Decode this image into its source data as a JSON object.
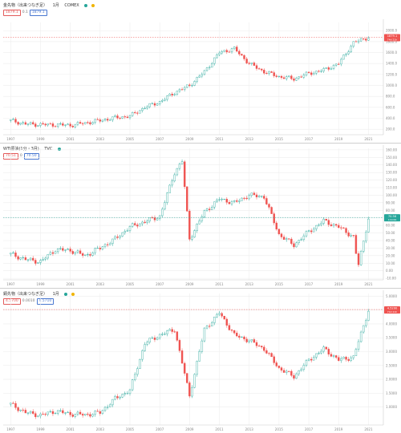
{
  "colors": {
    "up": "#26a69a",
    "down": "#ef5350",
    "grid": "#eeeeee",
    "axis": "#888888",
    "gold_accent": "#f0b400",
    "green_accent": "#26a69a"
  },
  "panels": [
    {
      "title": "金先物（出来つなぎ足）",
      "interval": "1月",
      "exchange": "COMEX",
      "price_boxes": [
        "1879.1",
        "0.1",
        "1879.1"
      ],
      "last_label": "1879.1",
      "last_sub": "74d 21h",
      "badge_color": "#ef5350"
    },
    {
      "title": "WTI原油(1分・3月)",
      "interval": "",
      "exchange": "TVC",
      "price_boxes": [
        "70.51",
        "0",
        "70.50"
      ],
      "last_label": "70.56",
      "last_sub": "119.99",
      "badge_color": "#26a69a"
    },
    {
      "title": "銅先物（出来つなぎ足）",
      "interval": "1月",
      "exchange": "",
      "price_boxes": [
        "4.5700",
        "0.0010",
        "4.5710"
      ],
      "last_label": "4.5200",
      "last_sub": "74d 21h",
      "badge_color": "#ef5350"
    }
  ],
  "chart_data": [
    {
      "type": "line",
      "title": "金先物（出来つなぎ足） 1月 COMEX",
      "x": [
        1997,
        1998,
        1999,
        2000,
        2001,
        2002,
        2003,
        2004,
        2005,
        2006,
        2007,
        2008,
        2009,
        2010,
        2011,
        2012,
        2013,
        2014,
        2015,
        2016,
        2017,
        2018,
        2019,
        2020,
        2021
      ],
      "values": [
        360,
        295,
        285,
        282,
        272,
        315,
        360,
        410,
        440,
        600,
        700,
        870,
        1000,
        1250,
        1600,
        1670,
        1400,
        1250,
        1160,
        1120,
        1220,
        1280,
        1400,
        1780,
        1880
      ],
      "x_ticks": [
        "1997",
        "1999",
        "2001",
        "2003",
        "2005",
        "2007",
        "2009",
        "2011",
        "2013",
        "2015",
        "2017",
        "2019",
        "2021"
      ],
      "y_ticks": [
        "200.0",
        "400.0",
        "600.0",
        "800.0",
        "1000.0",
        "1200.0",
        "1400.0",
        "1600.0",
        "1800.0",
        "2000.0"
      ],
      "ylim": [
        100,
        2150
      ],
      "last_value": 1879.1,
      "grid": true
    },
    {
      "type": "line",
      "title": "WTI原油(1分・3月) TVC",
      "x": [
        1997,
        1998,
        1999,
        2000,
        2001,
        2002,
        2003,
        2004,
        2005,
        2006,
        2007,
        2008,
        2008.5,
        2009,
        2010,
        2011,
        2012,
        2013,
        2014,
        2015,
        2016,
        2017,
        2018,
        2019,
        2020,
        2020.3,
        2021
      ],
      "values": [
        22,
        15,
        12,
        28,
        27,
        20,
        30,
        42,
        58,
        65,
        72,
        130,
        145,
        42,
        78,
        95,
        90,
        100,
        98,
        48,
        34,
        52,
        66,
        58,
        45,
        5,
        70
      ],
      "x_ticks": [
        "1997",
        "1999",
        "2001",
        "2003",
        "2005",
        "2007",
        "2009",
        "2011",
        "2013",
        "2015",
        "2017",
        "2019",
        "2021"
      ],
      "y_ticks": [
        "-10.00",
        "0.00",
        "10.00",
        "20.00",
        "30.00",
        "40.00",
        "50.00",
        "60.00",
        "70.00",
        "80.00",
        "90.00",
        "100.00",
        "110.00",
        "120.00",
        "130.00",
        "140.00",
        "150.00",
        "160.00"
      ],
      "ylim": [
        -12,
        162
      ],
      "last_value": 70.56,
      "grid": true
    },
    {
      "type": "line",
      "title": "銅先物（出来つなぎ足） 1月",
      "x": [
        1997,
        1998,
        1999,
        2000,
        2001,
        2002,
        2003,
        2004,
        2005,
        2006,
        2007,
        2008,
        2009,
        2010,
        2011,
        2012,
        2013,
        2014,
        2015,
        2016,
        2017,
        2018,
        2019,
        2020,
        2021
      ],
      "values": [
        1.1,
        0.8,
        0.7,
        0.85,
        0.75,
        0.72,
        0.8,
        1.3,
        1.6,
        3.3,
        3.6,
        3.8,
        1.4,
        3.8,
        4.4,
        3.6,
        3.4,
        3.1,
        2.4,
        2.1,
        2.7,
        3.1,
        2.7,
        2.8,
        4.5
      ],
      "x_ticks": [
        "1997",
        "1999",
        "2001",
        "2003",
        "2005",
        "2007",
        "2009",
        "2011",
        "2013",
        "2015",
        "2017",
        "2019",
        "2021"
      ],
      "y_ticks": [
        "1.0000",
        "1.5000",
        "2.0000",
        "2.5000",
        "3.0000",
        "3.5000",
        "4.0000",
        "4.5000",
        "5.0000"
      ],
      "ylim": [
        0.35,
        5.1
      ],
      "last_value": 4.52,
      "grid": true
    }
  ]
}
